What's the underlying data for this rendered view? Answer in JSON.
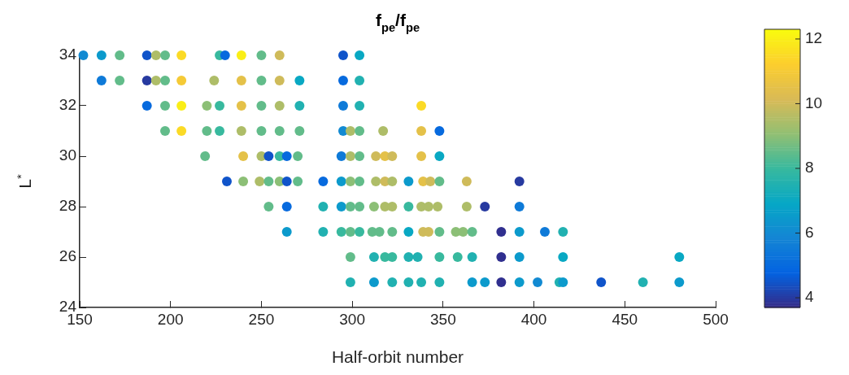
{
  "chart_data": {
    "type": "scatter",
    "title": "f$_{pe}$/f$_{pe}$",
    "xlabel": "Half-orbit number",
    "ylabel": "L$^{*}$",
    "xlim": [
      150,
      500
    ],
    "xticks": [
      150,
      200,
      250,
      300,
      350,
      400,
      450,
      500
    ],
    "ylim": [
      24,
      34
    ],
    "yticks": [
      24,
      26,
      28,
      30,
      32,
      34
    ],
    "clim": [
      3.7,
      12.3
    ],
    "cticks": [
      4,
      6,
      8,
      10,
      12
    ],
    "grid": false,
    "marker": "circle",
    "series": [
      {
        "x": [
          152,
          162,
          172,
          187,
          192,
          197,
          206,
          227,
          230,
          239,
          250,
          260,
          295,
          304,
          162,
          172,
          187,
          192,
          197,
          206,
          224,
          239,
          250,
          260,
          271,
          295,
          304,
          187,
          197,
          206,
          220,
          227,
          239,
          250,
          260,
          271,
          295,
          304,
          338,
          197,
          206,
          220,
          227,
          239,
          250,
          260,
          271,
          295,
          299,
          304,
          317,
          338,
          348,
          219,
          240,
          250,
          254,
          260,
          264,
          270,
          294,
          299,
          304,
          313,
          318,
          322,
          338,
          348,
          231,
          240,
          249,
          254,
          260,
          264,
          270,
          284,
          294,
          299,
          304,
          313,
          318,
          322,
          331,
          339,
          343,
          348,
          363,
          392,
          254,
          264,
          284,
          294,
          299,
          304,
          312,
          318,
          322,
          331,
          338,
          342,
          347,
          363,
          373,
          392,
          264,
          284,
          294,
          299,
          304,
          311,
          315,
          322,
          331,
          339,
          342,
          348,
          357,
          361,
          366,
          382,
          392,
          406,
          416,
          299,
          312,
          318,
          322,
          331,
          336,
          348,
          358,
          366,
          382,
          392,
          416,
          480,
          299,
          312,
          322,
          331,
          338,
          348,
          366,
          373,
          382,
          392,
          402,
          414,
          416,
          437,
          460,
          480
        ],
        "values": [
          34,
          34,
          34,
          34,
          34,
          34,
          34,
          34,
          34,
          34,
          34,
          34,
          34,
          34,
          33,
          33,
          33,
          33,
          33,
          33,
          33,
          33,
          33,
          33,
          33,
          33,
          33,
          32,
          32,
          32,
          32,
          32,
          32,
          32,
          32,
          32,
          32,
          32,
          32,
          31,
          31,
          31,
          31,
          31,
          31,
          31,
          31,
          31,
          31,
          31,
          31,
          31,
          31,
          30,
          30,
          30,
          30,
          30,
          30,
          30,
          30,
          30,
          30,
          30,
          30,
          30,
          30,
          30,
          29,
          29,
          29,
          29,
          29,
          29,
          29,
          29,
          29,
          29,
          29,
          29,
          29,
          29,
          29,
          29,
          29,
          29,
          29,
          29,
          28,
          28,
          28,
          28,
          28,
          28,
          28,
          28,
          28,
          28,
          28,
          28,
          28,
          28,
          28,
          28,
          27,
          27,
          27,
          27,
          27,
          27,
          27,
          27,
          27,
          27,
          27,
          27,
          27,
          27,
          27,
          27,
          27,
          27,
          27,
          26,
          26,
          26,
          26,
          26,
          26,
          26,
          26,
          26,
          26,
          26,
          26,
          26,
          25,
          25,
          25,
          25,
          25,
          25,
          25,
          25,
          25,
          25,
          25,
          25,
          25,
          25,
          25,
          25
        ],
        "cvalues": [
          6,
          6.5,
          8.5,
          4.5,
          9.5,
          8.5,
          11.5,
          8,
          5,
          12,
          8.5,
          10,
          4.5,
          7,
          5.5,
          8.5,
          4,
          9.5,
          8.5,
          11,
          9.5,
          10.5,
          8.5,
          10,
          7,
          5,
          7.5,
          5,
          8.5,
          12,
          9,
          8,
          10.5,
          8.5,
          9.5,
          7.5,
          5.5,
          7.5,
          11.5,
          8.5,
          11.5,
          8.5,
          8,
          9.5,
          8.5,
          8.5,
          8.5,
          6,
          9.5,
          8.5,
          9.5,
          10.5,
          5,
          8.5,
          10.5,
          9.5,
          4.5,
          8,
          5,
          8.5,
          5.5,
          9.5,
          8.5,
          10,
          10.5,
          10,
          10.5,
          7,
          4.5,
          9,
          9.5,
          8.5,
          9,
          4.5,
          8.5,
          5,
          6.5,
          9,
          8.5,
          9.5,
          10,
          9.5,
          6.5,
          10.5,
          10,
          8.5,
          10,
          4,
          8.5,
          5,
          7.5,
          6.5,
          8.5,
          8.5,
          9,
          9.5,
          9.5,
          8,
          9.5,
          9.5,
          9.5,
          9.5,
          4,
          5.5,
          6.5,
          7.5,
          8,
          8.5,
          8,
          8.5,
          8.5,
          8.5,
          7,
          10,
          10,
          8.5,
          9,
          9,
          8.5,
          3.8,
          6.5,
          5.5,
          7.5,
          8.5,
          7.5,
          8,
          8,
          7.5,
          7.5,
          8,
          8,
          7.5,
          3.8,
          6.5,
          7,
          7,
          7.5,
          6.5,
          7.5,
          7.5,
          7.5,
          7.5,
          6.5,
          6.5,
          3.8,
          6.5,
          6,
          7.5,
          6.5,
          4.5,
          7.5,
          6.5
        ]
      }
    ]
  }
}
